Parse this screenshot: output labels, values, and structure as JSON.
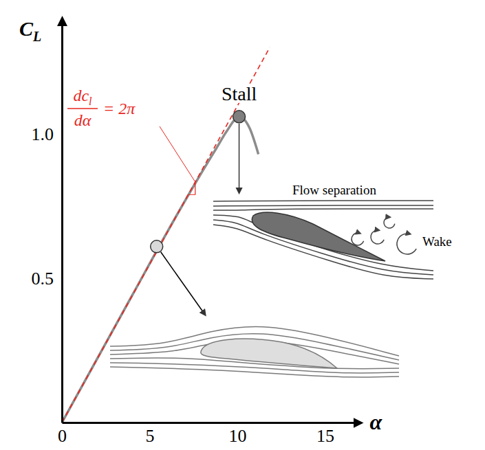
{
  "chart_data": {
    "type": "line",
    "x_label": "α",
    "y_label": "C",
    "y_label_subscript": "L",
    "xlim": [
      0,
      17
    ],
    "ylim": [
      0,
      1.4
    ],
    "xticks": [
      0,
      5,
      10,
      15
    ],
    "yticks": [
      0.5,
      {
        "value": 1,
        "label": "1.0"
      }
    ],
    "series": [
      {
        "color": "#8c8c8c",
        "line_style": "solid",
        "x": [
          0,
          2,
          4,
          6,
          8,
          8.8,
          9.4,
          10.1,
          10.7,
          11.2
        ],
        "values": [
          0,
          0.22,
          0.44,
          0.66,
          0.87,
          0.95,
          1.01,
          1.06,
          1.02,
          0.93
        ]
      },
      {
        "color": "#e8261e",
        "line_style": "dashed",
        "x": [
          0,
          11.85
        ],
        "values": [
          0,
          1.3
        ]
      }
    ],
    "points": [
      {
        "x": 5.4,
        "y": 0.61,
        "color": "#d9d9d9",
        "marker": "circle"
      },
      {
        "x": 10.1,
        "y": 1.06,
        "color": "#7f7f7f",
        "marker": "circle",
        "label": "Stall"
      }
    ],
    "annotations": {
      "slope": {
        "numerator": "dc",
        "numerator_subscript": "l",
        "denominator": "dα",
        "equals": "= 2π"
      },
      "separation": "Flow separation",
      "wake": "Wake"
    }
  }
}
